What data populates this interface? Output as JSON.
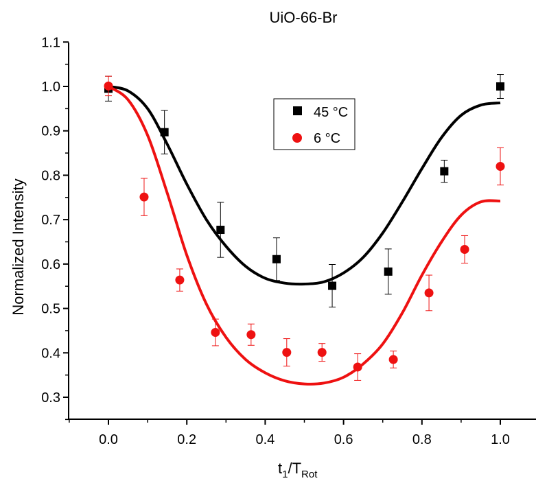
{
  "chart_data": {
    "type": "scatter",
    "title": "UiO-66-Br",
    "xlabel_main": "t",
    "xlabel_sub1": "1",
    "xlabel_mid": "/T",
    "xlabel_sub2": "Rot",
    "ylabel": "Normalized Intensity",
    "xlim": [
      -0.1,
      1.08
    ],
    "ylim": [
      0.25,
      1.1
    ],
    "xticks": [
      0.0,
      0.2,
      0.4,
      0.6,
      0.8,
      1.0
    ],
    "xtick_labels": [
      "0.0",
      "0.2",
      "0.4",
      "0.6",
      "0.8",
      "1.0"
    ],
    "yticks": [
      0.3,
      0.4,
      0.5,
      0.6,
      0.7,
      0.8,
      0.9,
      1.0,
      1.1
    ],
    "ytick_labels": [
      "0.3",
      "0.4",
      "0.5",
      "0.6",
      "0.7",
      "0.8",
      "0.9",
      "1.0",
      "1.1"
    ],
    "legend_position": "top-center",
    "series": [
      {
        "name": "45 °C",
        "color": "#000000",
        "marker": "square",
        "x": [
          0.0,
          0.143,
          0.286,
          0.429,
          0.571,
          0.714,
          0.857,
          1.0
        ],
        "y": [
          0.995,
          0.897,
          0.677,
          0.611,
          0.551,
          0.583,
          0.809,
          1.0
        ],
        "err": [
          0.028,
          0.049,
          0.062,
          0.048,
          0.048,
          0.051,
          0.025,
          0.027
        ],
        "fit_x": [
          0.0,
          0.05,
          0.1,
          0.15,
          0.2,
          0.25,
          0.3,
          0.35,
          0.4,
          0.45,
          0.5,
          0.55,
          0.6,
          0.65,
          0.7,
          0.75,
          0.8,
          0.85,
          0.9,
          0.95,
          1.0
        ],
        "fit_y": [
          1.0,
          0.99,
          0.95,
          0.87,
          0.78,
          0.7,
          0.64,
          0.595,
          0.568,
          0.557,
          0.555,
          0.56,
          0.58,
          0.615,
          0.67,
          0.74,
          0.815,
          0.885,
          0.935,
          0.958,
          0.963
        ]
      },
      {
        "name": "6 °C",
        "color": "#ee1111",
        "marker": "circle",
        "x": [
          0.0,
          0.091,
          0.182,
          0.273,
          0.364,
          0.455,
          0.545,
          0.636,
          0.727,
          0.818,
          0.909,
          1.0
        ],
        "y": [
          1.001,
          0.751,
          0.564,
          0.446,
          0.441,
          0.401,
          0.401,
          0.368,
          0.385,
          0.535,
          0.633,
          0.82
        ],
        "err": [
          0.022,
          0.042,
          0.025,
          0.03,
          0.024,
          0.031,
          0.02,
          0.03,
          0.019,
          0.04,
          0.031,
          0.042
        ],
        "fit_x": [
          0.0,
          0.05,
          0.1,
          0.15,
          0.2,
          0.25,
          0.3,
          0.35,
          0.4,
          0.45,
          0.5,
          0.55,
          0.6,
          0.65,
          0.7,
          0.75,
          0.8,
          0.85,
          0.9,
          0.95,
          1.0
        ],
        "fit_y": [
          1.0,
          0.97,
          0.89,
          0.76,
          0.62,
          0.51,
          0.435,
          0.385,
          0.355,
          0.337,
          0.33,
          0.332,
          0.345,
          0.375,
          0.42,
          0.49,
          0.575,
          0.65,
          0.71,
          0.74,
          0.742
        ]
      }
    ]
  }
}
